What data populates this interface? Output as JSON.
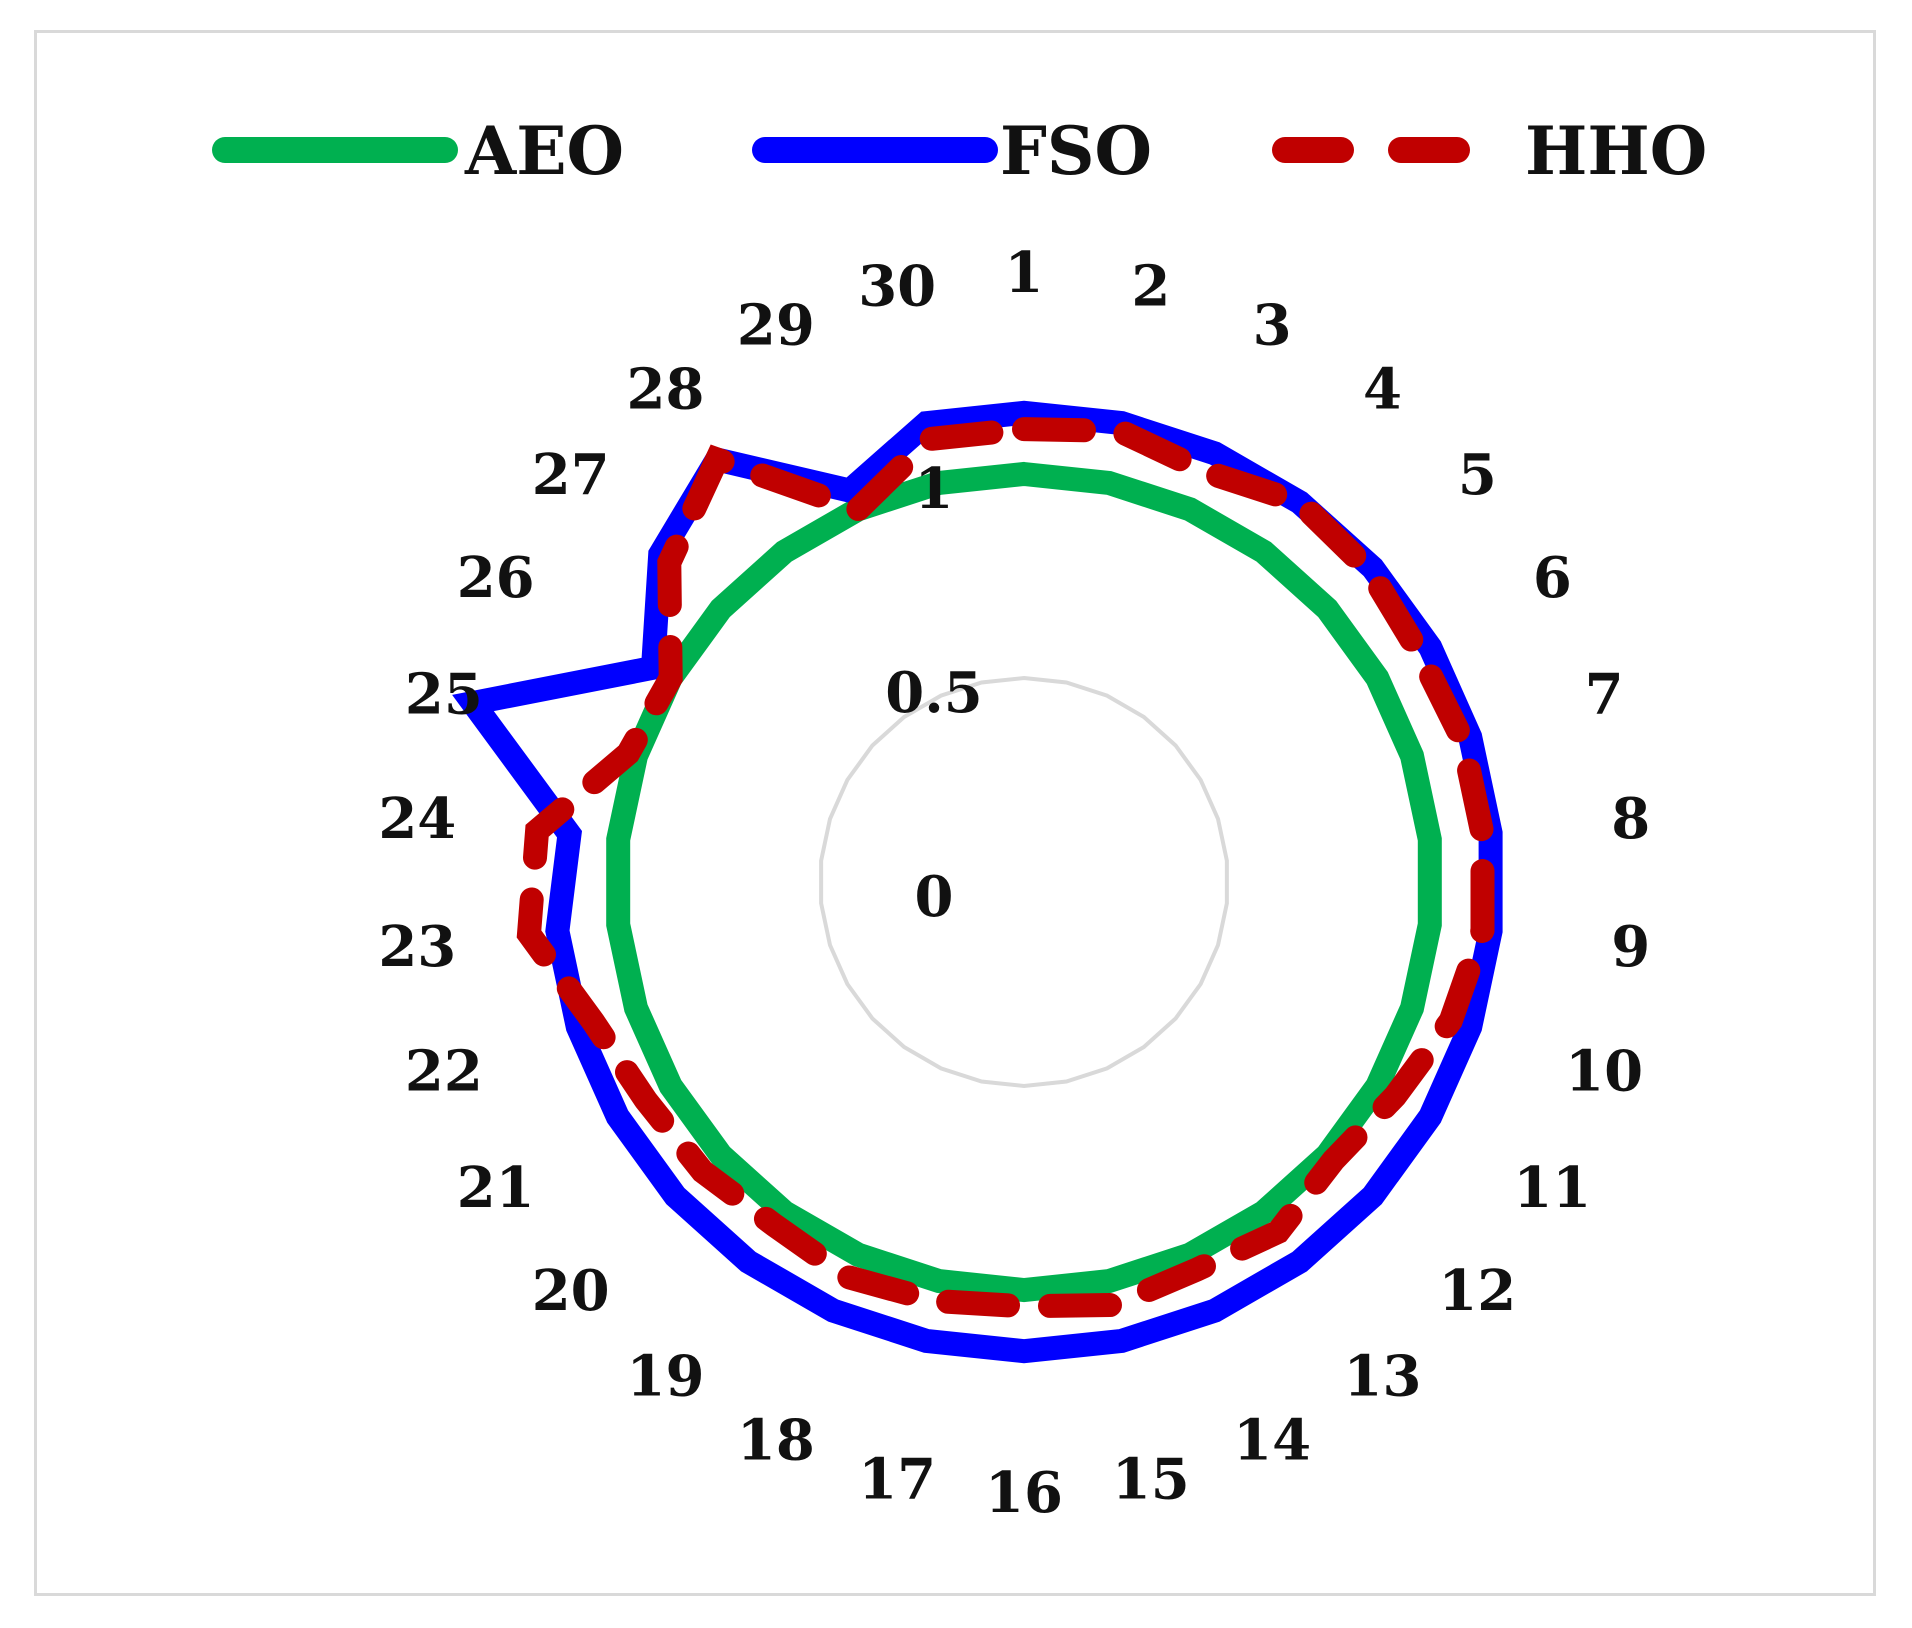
{
  "chart_data": {
    "type": "radar",
    "title": "",
    "categories": [
      "1",
      "2",
      "3",
      "4",
      "5",
      "6",
      "7",
      "8",
      "9",
      "10",
      "11",
      "12",
      "13",
      "14",
      "15",
      "16",
      "17",
      "18",
      "19",
      "20",
      "21",
      "22",
      "23",
      "24",
      "25",
      "26",
      "27",
      "28",
      "29",
      "30"
    ],
    "r_ticks": [
      0,
      0.5,
      1
    ],
    "r_tick_labels": [
      "0",
      "0.5",
      "1"
    ],
    "r_range": [
      0,
      1.3
    ],
    "grid": true,
    "legend_position": "top",
    "series": [
      {
        "name": "AEO",
        "color": "#00b050",
        "dash": "solid",
        "values": [
          1.0,
          1.0,
          1.0,
          1.0,
          1.0,
          1.0,
          1.0,
          1.0,
          1.0,
          1.0,
          1.0,
          1.0,
          1.0,
          1.0,
          1.0,
          1.0,
          1.0,
          1.0,
          1.0,
          1.0,
          1.0,
          1.0,
          1.0,
          1.0,
          1.0,
          1.0,
          1.0,
          1.0,
          1.0,
          1.0
        ]
      },
      {
        "name": "FSO",
        "color": "#0000ff",
        "dash": "solid",
        "values": [
          1.15,
          1.15,
          1.15,
          1.15,
          1.15,
          1.15,
          1.15,
          1.15,
          1.15,
          1.15,
          1.15,
          1.15,
          1.15,
          1.15,
          1.15,
          1.15,
          1.15,
          1.15,
          1.15,
          1.15,
          1.15,
          1.15,
          1.15,
          1.12,
          1.42,
          1.05,
          1.2,
          1.28,
          1.05,
          1.15
        ]
      },
      {
        "name": "HHO",
        "color": "#c00000",
        "dash": "dashed",
        "values": [
          1.11,
          1.13,
          1.1,
          1.15,
          1.14,
          1.12,
          1.13,
          1.13,
          1.13,
          1.1,
          1.05,
          1.02,
          1.06,
          1.04,
          1.06,
          1.04,
          1.05,
          1.06,
          1.04,
          1.06,
          1.07,
          1.11,
          1.22,
          1.2,
          1.02,
          1.0,
          1.17,
          1.28,
          1.0,
          1.11
        ]
      }
    ]
  }
}
